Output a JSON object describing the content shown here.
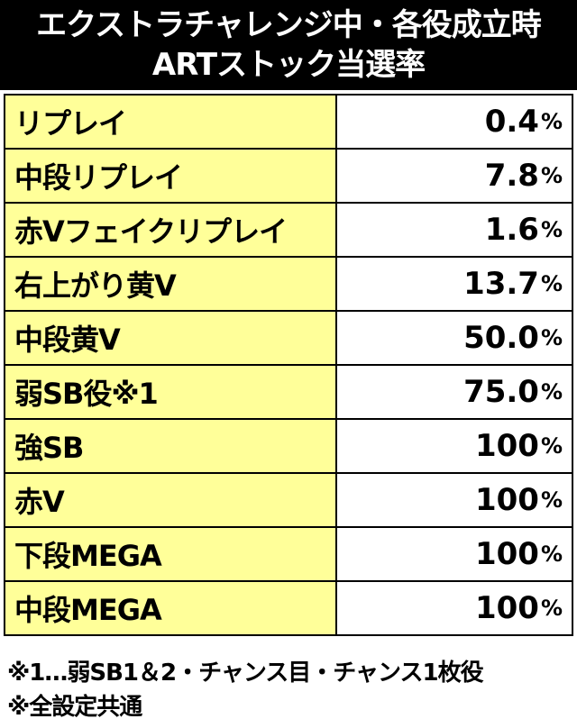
{
  "header": {
    "title_line1": "エクストラチャレンジ中・各役成立時",
    "title_line2": "ARTストック当選率"
  },
  "rows": [
    {
      "label": "リプレイ",
      "value": "0.4",
      "unit": "%"
    },
    {
      "label": "中段リプレイ",
      "value": "7.8",
      "unit": "%"
    },
    {
      "label": "赤Vフェイクリプレイ",
      "value": "1.6",
      "unit": "%"
    },
    {
      "label": "右上がり黄V",
      "value": "13.7",
      "unit": "%"
    },
    {
      "label": "中段黄V",
      "value": "50.0",
      "unit": "%"
    },
    {
      "label": "弱SB役※1",
      "value": "75.0",
      "unit": "%"
    },
    {
      "label": "強SB",
      "value": "100",
      "unit": "%"
    },
    {
      "label": "赤V",
      "value": "100",
      "unit": "%"
    },
    {
      "label": "下段MEGA",
      "value": "100",
      "unit": "%"
    },
    {
      "label": "中段MEGA",
      "value": "100",
      "unit": "%"
    }
  ],
  "notes": {
    "note1": "※1…弱SB1＆2・チャンス目・チャンス1枚役",
    "note2": "※全設定共通"
  }
}
